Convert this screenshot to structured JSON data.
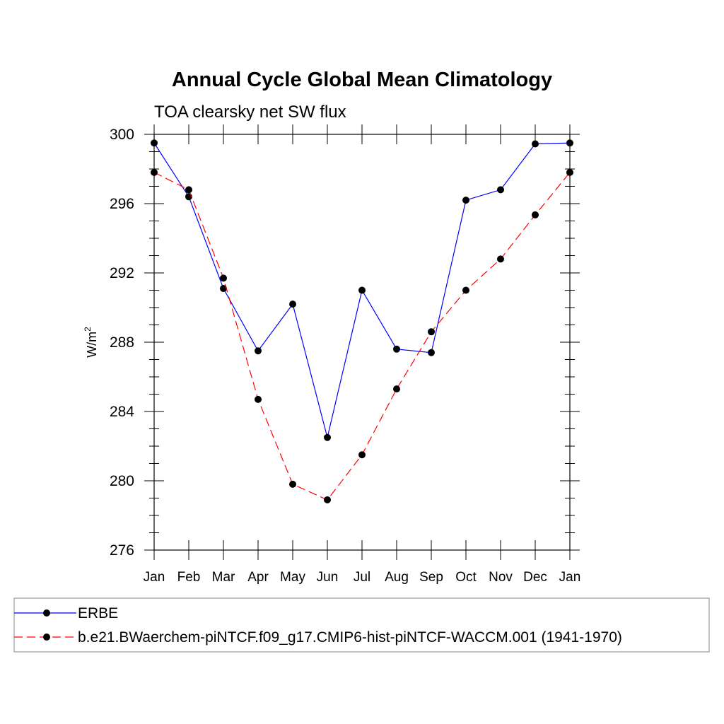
{
  "chart_data": {
    "type": "line",
    "title": "Annual Cycle Global Mean Climatology",
    "subtitle": "TOA clearsky net SW flux",
    "ylabel_base": "W/m",
    "ylabel_sup": "2",
    "categories": [
      "Jan",
      "Feb",
      "Mar",
      "Apr",
      "May",
      "Jun",
      "Jul",
      "Aug",
      "Sep",
      "Oct",
      "Nov",
      "Dec",
      "Jan"
    ],
    "ylim": [
      276,
      300
    ],
    "yticks": [
      276,
      280,
      284,
      288,
      292,
      296,
      300
    ],
    "yminor_step": 1,
    "grid": false,
    "legend_position": "bottom",
    "series": [
      {
        "name": "ERBE",
        "color": "#0000ff",
        "dash": "solid",
        "values": [
          299.5,
          296.4,
          291.1,
          287.5,
          290.2,
          282.5,
          291.0,
          287.6,
          287.4,
          296.2,
          296.8,
          299.45,
          299.5
        ]
      },
      {
        "name": "b.e21.BWaerchem-piNTCF.f09_g17.CMIP6-hist-piNTCF-WACCM.001 (1941-1970)",
        "color": "#ff0000",
        "dash": "dashed",
        "values": [
          297.8,
          296.8,
          291.7,
          284.7,
          279.8,
          278.9,
          281.5,
          285.3,
          288.6,
          291.0,
          292.8,
          295.35,
          297.8
        ]
      }
    ]
  }
}
